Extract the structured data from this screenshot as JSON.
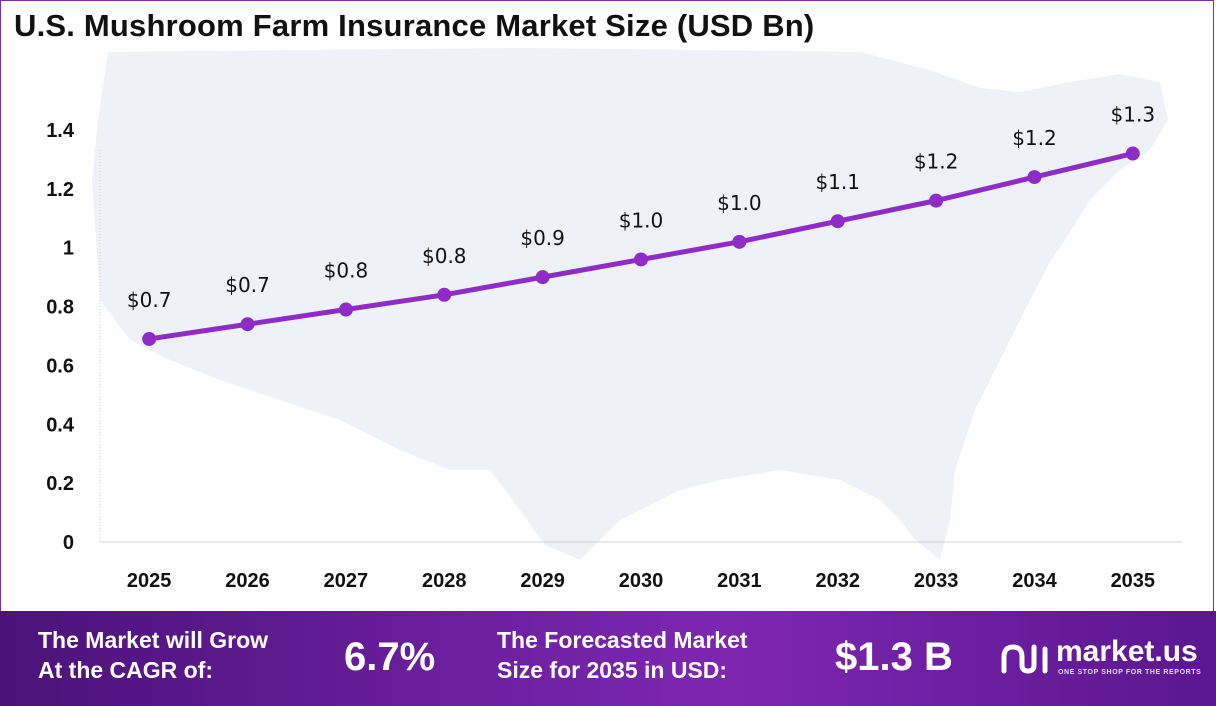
{
  "chart_data": {
    "type": "line",
    "title": "U.S. Mushroom Farm Insurance Market Size (USD Bn)",
    "categories": [
      "2025",
      "2026",
      "2027",
      "2028",
      "2029",
      "2030",
      "2031",
      "2032",
      "2033",
      "2034",
      "2035"
    ],
    "series": [
      {
        "values": [
          0.69,
          0.74,
          0.79,
          0.84,
          0.9,
          0.96,
          1.02,
          1.09,
          1.16,
          1.24,
          1.32
        ],
        "data_labels": [
          "$0.7",
          "$0.7",
          "$0.8",
          "$0.8",
          "$0.9",
          "$1.0",
          "$1.0",
          "$1.1",
          "$1.2",
          "$1.2",
          "$1.3"
        ],
        "color": "#8e2cc8"
      }
    ],
    "y_ticks": [
      "0",
      "0.2",
      "0.4",
      "0.6",
      "0.8",
      "1",
      "1.2",
      "1.4"
    ],
    "ylim": [
      0,
      1.4
    ],
    "xlabel": "",
    "ylabel": "",
    "grid": false,
    "background_map": "usa-map"
  },
  "footer": {
    "cagr_label_line1": "The Market will Grow",
    "cagr_label_line2": "At the CAGR of:",
    "cagr_value": "6.7%",
    "forecast_label_line1": "The Forecasted Market",
    "forecast_label_line2": "Size for 2035 in USD:",
    "forecast_value": "$1.3 B",
    "logo_name": "market.us",
    "logo_tagline": "ONE STOP SHOP FOR THE REPORTS"
  },
  "colors": {
    "line": "#8e2cc8",
    "map": "#eef1f8",
    "footer_start": "#4a1279",
    "footer_end": "#7d27b0"
  }
}
